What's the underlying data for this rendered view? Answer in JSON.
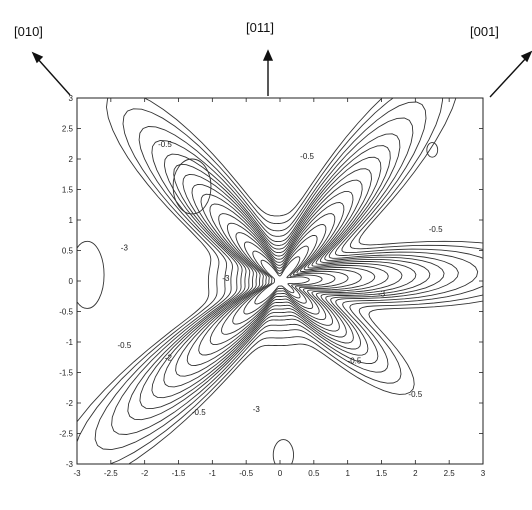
{
  "directions": {
    "left": "[010]",
    "center": "[011]",
    "right": "[001]"
  },
  "chart_data": {
    "type": "contour",
    "title": "",
    "xlabel": "",
    "ylabel": "",
    "xlim": [
      -3,
      3
    ],
    "ylim": [
      -3,
      3
    ],
    "x_ticks": [
      "-3",
      "-2.5",
      "-2",
      "-1.5",
      "-1",
      "-0.5",
      "0",
      "0.5",
      "1",
      "1.5",
      "2",
      "2.5",
      "3"
    ],
    "y_ticks": [
      "3",
      "2.5",
      "2",
      "1.5",
      "1",
      "0.5",
      "0",
      "-0.5",
      "-1",
      "-1.5",
      "-2",
      "-2.5",
      "-3"
    ],
    "grid": false,
    "contour_labels": [
      {
        "text": "-0.5",
        "x": -1.7,
        "y": 2.2
      },
      {
        "text": "-0.5",
        "x": 0.4,
        "y": 2.0
      },
      {
        "text": "-0.5",
        "x": 2.3,
        "y": 0.8
      },
      {
        "text": "-3",
        "x": -2.3,
        "y": 0.5
      },
      {
        "text": "-3",
        "x": -0.8,
        "y": 0.0
      },
      {
        "text": "-3",
        "x": 1.5,
        "y": -0.25
      },
      {
        "text": "-0.5",
        "x": -2.3,
        "y": -1.1
      },
      {
        "text": "-2",
        "x": -1.65,
        "y": -1.3
      },
      {
        "text": "-0.5",
        "x": 1.1,
        "y": -1.35
      },
      {
        "text": "-0.5",
        "x": -1.2,
        "y": -2.2
      },
      {
        "text": "-3",
        "x": -0.35,
        "y": -2.15
      },
      {
        "text": "-0.5",
        "x": 2.0,
        "y": -1.9
      }
    ]
  }
}
